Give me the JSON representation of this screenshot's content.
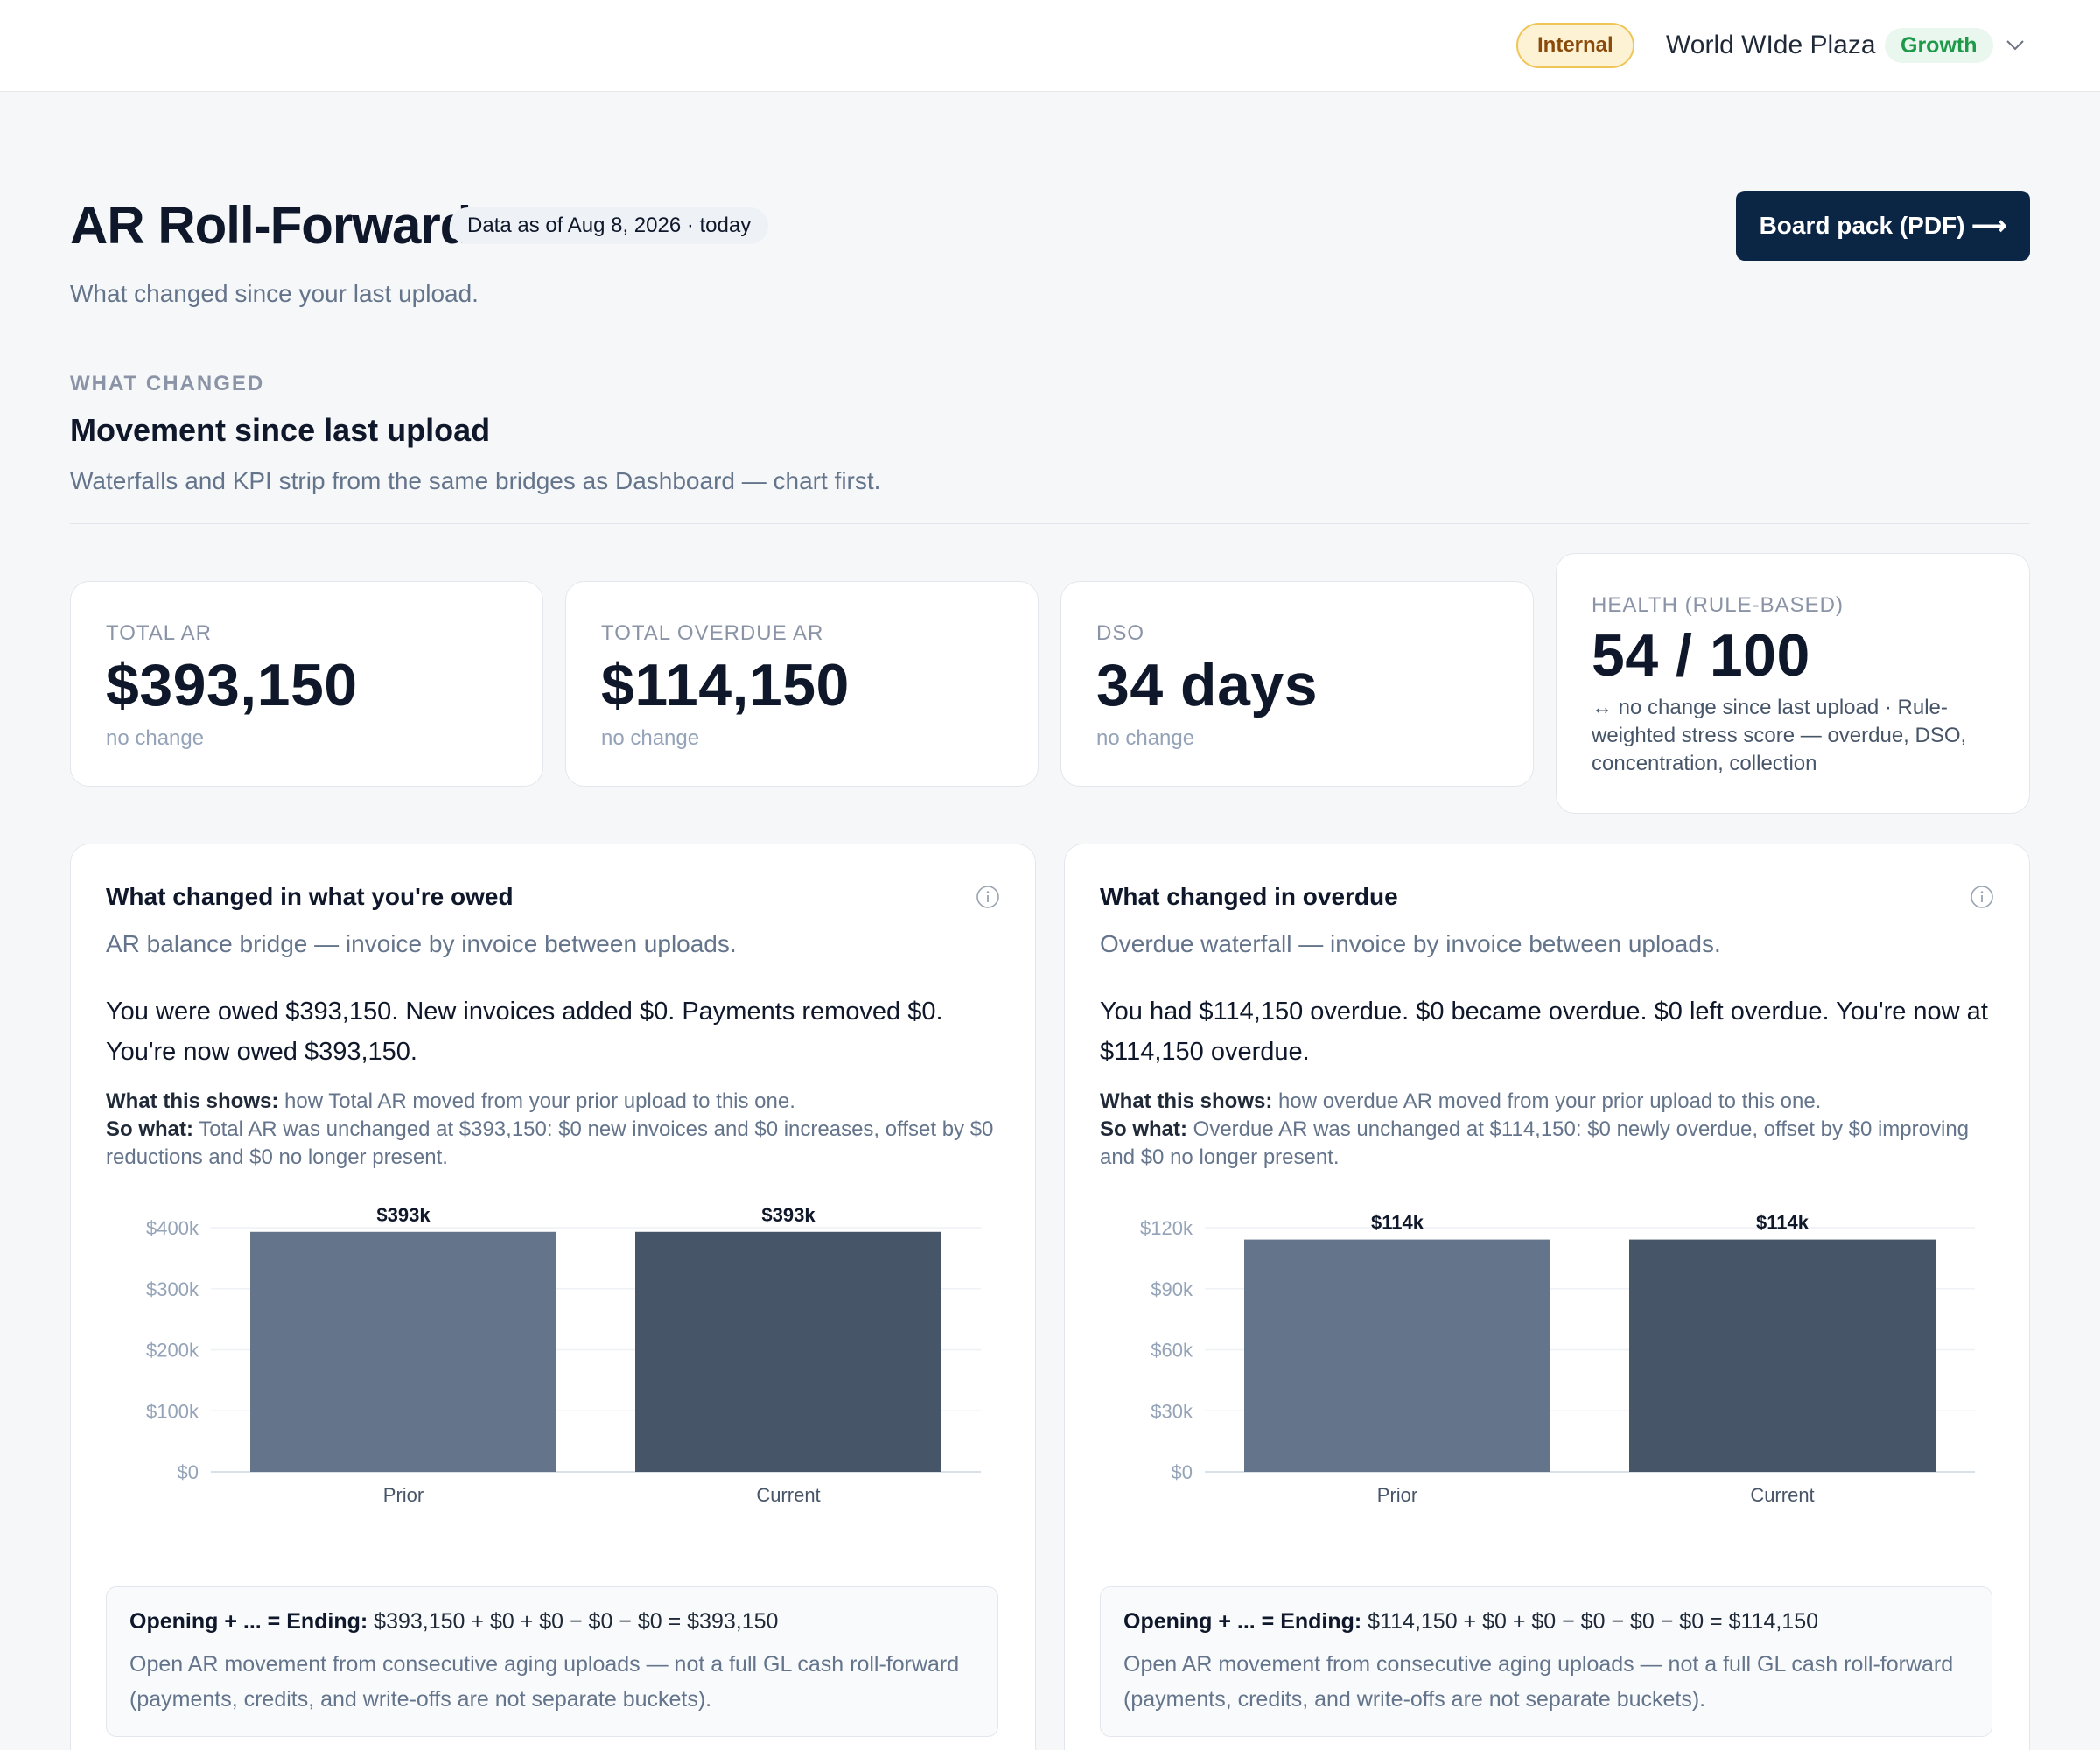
{
  "topbar": {
    "env_badge": "Internal",
    "org_name": "World WIde Plaza",
    "plan_badge": "Growth",
    "org_menu_icon": "chevron-down-icon"
  },
  "header": {
    "title": "AR Roll-Forward",
    "as_of": "Data as of Aug 8, 2026 · today",
    "subtitle": "What changed since your last upload.",
    "board_pack_label": "Board pack (PDF) ⟶"
  },
  "section": {
    "eyebrow": "WHAT CHANGED",
    "title": "Movement since last upload",
    "subtitle": "Waterfalls and KPI strip from the same bridges as Dashboard — chart first."
  },
  "kpis": [
    {
      "label": "TOTAL AR",
      "value": "$393,150",
      "delta": "no change"
    },
    {
      "label": "TOTAL OVERDUE AR",
      "value": "$114,150",
      "delta": "no change"
    },
    {
      "label": "DSO",
      "value": "34 days",
      "delta": "no change"
    },
    {
      "label": "HEALTH (RULE-BASED)",
      "value": "54 / 100",
      "note": "↔ no change since last upload · Rule-weighted stress score — overdue, DSO, concentration, collection"
    }
  ],
  "cards": [
    {
      "title": "What changed in what you're owed",
      "info_icon": "info-icon",
      "subtitle": "AR balance bridge — invoice by invoice between uploads.",
      "summary": "You were owed $393,150. New invoices added $0. Payments removed $0. You're now owed $393,150.",
      "shows_label": "What this shows:",
      "shows_text": " how Total AR moved from your prior upload to this one.",
      "sowhat_label": "So what:",
      "sowhat_text": " Total AR was unchanged at $393,150: $0 new invoices and $0 increases, offset by $0 reductions and $0 no longer present.",
      "formula_label": "Opening + ... = Ending:",
      "formula_text": " $393,150 + $0 + $0 − $0 − $0 = $393,150",
      "formula_note": "Open AR movement from consecutive aging uploads — not a full GL cash roll-forward (payments, credits, and write-offs are not separate buckets)."
    },
    {
      "title": "What changed in overdue",
      "info_icon": "info-icon",
      "subtitle": "Overdue waterfall — invoice by invoice between uploads.",
      "summary": "You had $114,150 overdue. $0 became overdue. $0 left overdue. You're now at $114,150 overdue.",
      "shows_label": "What this shows:",
      "shows_text": " how overdue AR moved from your prior upload to this one.",
      "sowhat_label": "So what:",
      "sowhat_text": " Overdue AR was unchanged at $114,150: $0 newly overdue, offset by $0 improving and $0 no longer present.",
      "formula_label": "Opening + ... = Ending:",
      "formula_text": " $114,150 + $0 + $0 − $0 − $0 − $0 = $114,150",
      "formula_note": "Open AR movement from consecutive aging uploads — not a full GL cash roll-forward (payments, credits, and write-offs are not separate buckets)."
    }
  ],
  "chart_data": [
    {
      "type": "bar",
      "categories": [
        "Prior",
        "Current"
      ],
      "values": [
        393150,
        393150
      ],
      "data_labels": [
        "$393k",
        "$393k"
      ],
      "ylim": [
        0,
        400000
      ],
      "yticks": [
        0,
        100000,
        200000,
        300000,
        400000
      ],
      "ytick_labels": [
        "$0",
        "$100k",
        "$200k",
        "$300k",
        "$400k"
      ],
      "colors": [
        "#64748b",
        "#475569"
      ],
      "grid": true,
      "title": "",
      "xlabel": "",
      "ylabel": ""
    },
    {
      "type": "bar",
      "categories": [
        "Prior",
        "Current"
      ],
      "values": [
        114150,
        114150
      ],
      "data_labels": [
        "$114k",
        "$114k"
      ],
      "ylim": [
        0,
        120000
      ],
      "yticks": [
        0,
        30000,
        60000,
        90000,
        120000
      ],
      "ytick_labels": [
        "$0",
        "$30k",
        "$60k",
        "$90k",
        "$120k"
      ],
      "colors": [
        "#64748b",
        "#475569"
      ],
      "grid": true,
      "title": "",
      "xlabel": "",
      "ylabel": ""
    }
  ]
}
